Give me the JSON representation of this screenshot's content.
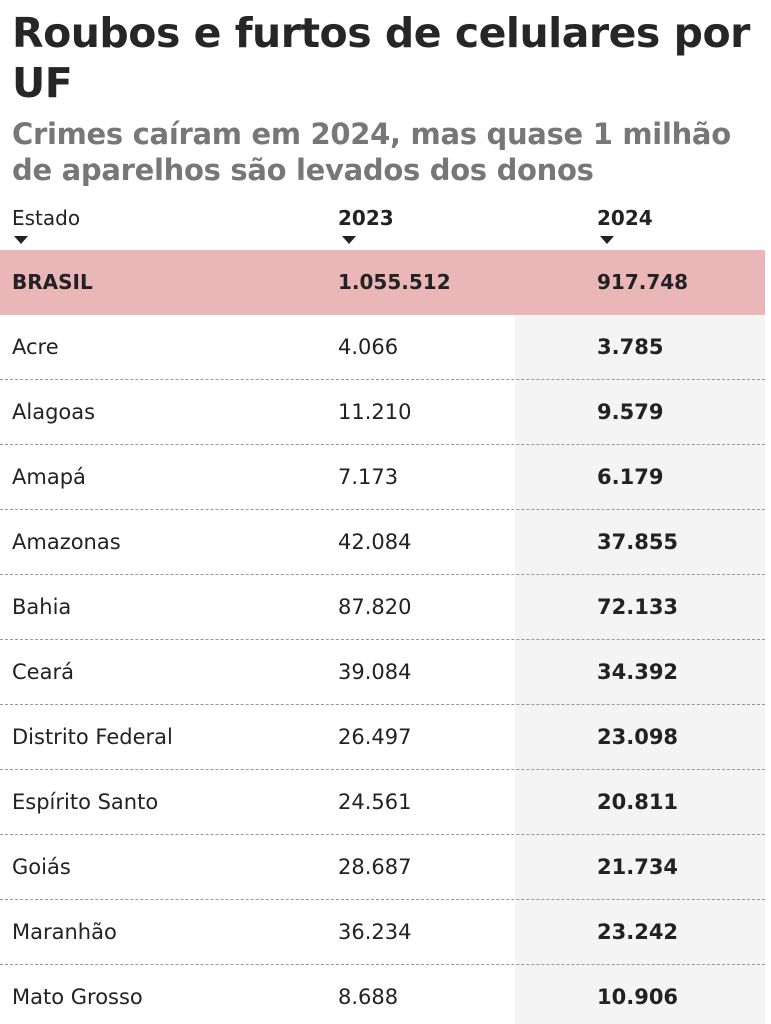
{
  "header": {
    "title": "Roubos e furtos de celulares por UF",
    "subtitle": "Crimes caíram em 2024, mas quase 1 milhão de aparelhos são levados dos donos"
  },
  "table": {
    "columns": [
      "Estado",
      "2023",
      "2024"
    ],
    "rows": [
      [
        "BRASIL",
        "1.055.512",
        "917.748"
      ],
      [
        "Acre",
        "4.066",
        "3.785"
      ],
      [
        "Alagoas",
        "11.210",
        "9.579"
      ],
      [
        "Amapá",
        "7.173",
        "6.179"
      ],
      [
        "Amazonas",
        "42.084",
        "37.855"
      ],
      [
        "Bahia",
        "87.820",
        "72.133"
      ],
      [
        "Ceará",
        "39.084",
        "34.392"
      ],
      [
        "Distrito Federal",
        "26.497",
        "23.098"
      ],
      [
        "Espírito Santo",
        "24.561",
        "20.811"
      ],
      [
        "Goiás",
        "28.687",
        "21.734"
      ],
      [
        "Maranhão",
        "36.234",
        "23.242"
      ],
      [
        "Mato Grosso",
        "8.688",
        "10.906"
      ]
    ]
  }
}
